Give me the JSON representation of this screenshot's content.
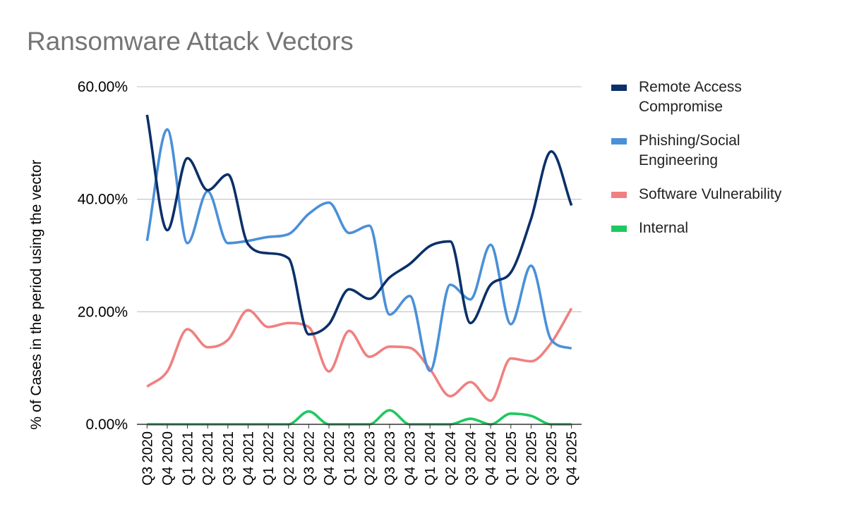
{
  "chart_data": {
    "type": "line",
    "title": "Ransomware Attack Vectors",
    "xlabel": "",
    "ylabel": "% of Cases in the period using the vector",
    "categories": [
      "Q3 2020",
      "Q4 2020",
      "Q1 2021",
      "Q2 2021",
      "Q3 2021",
      "Q4 2021",
      "Q1 2022",
      "Q2 2022",
      "Q3 2022",
      "Q4 2022",
      "Q1 2023",
      "Q2 2023",
      "Q3 2023",
      "Q4 2023",
      "Q1 2024",
      "Q2 2024",
      "Q3 2024",
      "Q4 2024",
      "Q1 2025",
      "Q2 2025",
      "Q3 2025",
      "Q4 2025"
    ],
    "y_ticks": [
      "0.00%",
      "20.00%",
      "40.00%",
      "60.00%"
    ],
    "ylim": [
      0,
      60
    ],
    "grid": true,
    "legend_position": "right",
    "series": [
      {
        "name": "Remote Access Compromise",
        "color": "#0b3069",
        "values": [
          55.0,
          34.5,
          47.3,
          41.6,
          44.4,
          32.0,
          30.4,
          29.5,
          16.0,
          17.8,
          24.0,
          22.3,
          26.1,
          28.5,
          31.7,
          32.5,
          18.0,
          24.8,
          27.0,
          36.5,
          48.5,
          38.9
        ]
      },
      {
        "name": "Phishing/Social Engineering",
        "color": "#4a90d9",
        "values": [
          32.6,
          52.4,
          32.2,
          41.4,
          32.2,
          32.6,
          33.3,
          33.8,
          37.4,
          39.4,
          34.0,
          35.3,
          19.5,
          22.8,
          9.5,
          24.8,
          22.2,
          31.9,
          17.8,
          28.2,
          15.0,
          13.5
        ]
      },
      {
        "name": "Software Vulnerability",
        "color": "#f08080",
        "values": [
          6.7,
          9.4,
          16.9,
          13.7,
          15.0,
          20.3,
          17.3,
          18.0,
          17.3,
          9.4,
          16.6,
          12.0,
          13.8,
          13.6,
          9.8,
          5.0,
          7.5,
          4.2,
          11.7,
          11.2,
          14.5,
          20.6
        ]
      },
      {
        "name": "Internal",
        "color": "#1ec95e",
        "values": [
          0,
          0,
          0,
          0,
          0,
          0,
          0,
          0,
          2.3,
          0,
          0,
          0,
          2.5,
          0,
          0,
          0,
          1.0,
          0,
          1.9,
          1.5,
          0,
          0
        ]
      }
    ]
  }
}
